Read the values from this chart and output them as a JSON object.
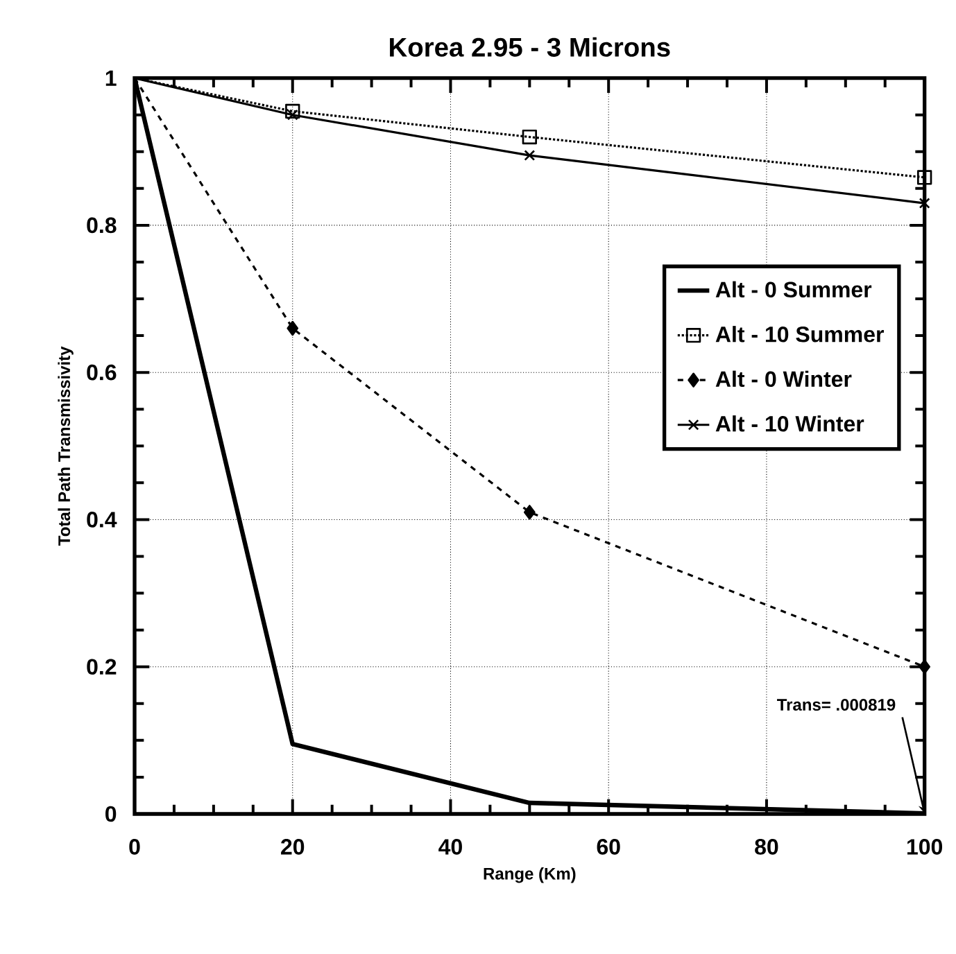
{
  "chart_data": {
    "type": "line",
    "title": "Korea 2.95 - 3 Microns",
    "xlabel": "Range (Km)",
    "ylabel": "Total Path Transmissivity",
    "x": [
      0,
      20,
      50,
      100
    ],
    "series": [
      {
        "name": "Alt - 0 Summer",
        "color": "#000000",
        "values": [
          1,
          0.095,
          0.015,
          0.000819
        ],
        "marker": "none",
        "line_style": "solid"
      },
      {
        "name": "Alt - 10 Summer",
        "color": "#000000",
        "values": [
          1,
          0.955,
          0.92,
          0.865
        ],
        "marker": "square",
        "line_style": "dotted"
      },
      {
        "name": "Alt - 0 Winter",
        "color": "#000000",
        "values": [
          1,
          0.66,
          0.41,
          0.2
        ],
        "marker": "diamond",
        "line_style": "dashed"
      },
      {
        "name": "Alt - 10 Winter",
        "color": "#000000",
        "values": [
          1,
          0.95,
          0.895,
          0.83
        ],
        "marker": "cross",
        "line_style": "solid"
      }
    ],
    "annotations": [
      {
        "text": "Trans= .000819",
        "x": 100,
        "y": 0.000819
      }
    ],
    "xlim": [
      0,
      100
    ],
    "ylim": [
      0,
      1
    ],
    "xticks": [
      0,
      20,
      40,
      60,
      80,
      100
    ],
    "yticks": [
      0,
      0.2,
      0.4,
      0.6,
      0.8,
      1
    ],
    "grid": true,
    "legend": "right"
  }
}
